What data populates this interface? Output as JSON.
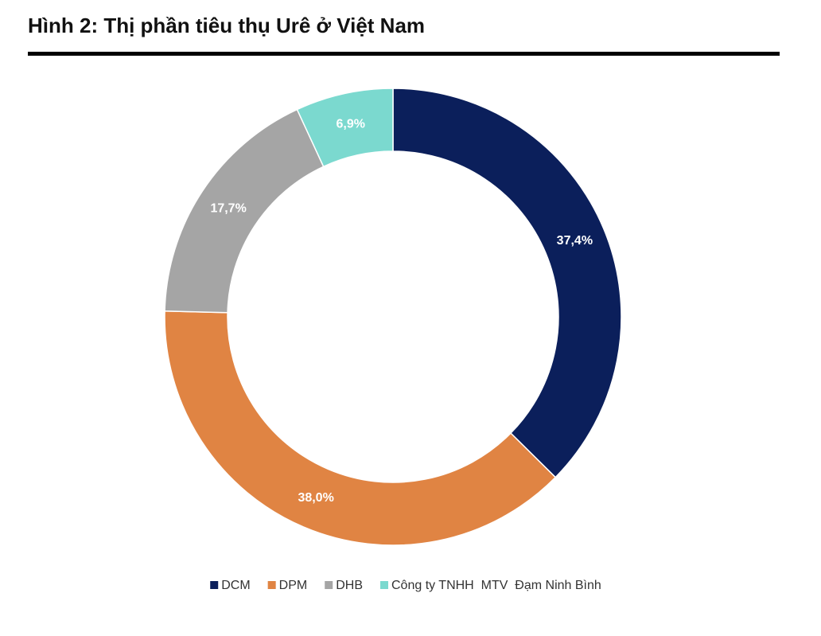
{
  "chart_data": {
    "type": "pie",
    "donut": true,
    "title": "Hình 2: Thị phần tiêu thụ Urê ở Việt Nam",
    "categories": [
      "DCM",
      "DPM",
      "DHB",
      "Công ty TNHH  MTV  Đạm Ninh Bình"
    ],
    "values": [
      37.4,
      38.0,
      17.7,
      6.9
    ],
    "value_labels": [
      "37,4%",
      "38,0%",
      "17,7%",
      "6,9%"
    ],
    "colors": [
      "#0b1f5b",
      "#e08443",
      "#a5a5a5",
      "#7bd9cf"
    ],
    "legend": "bottom"
  }
}
